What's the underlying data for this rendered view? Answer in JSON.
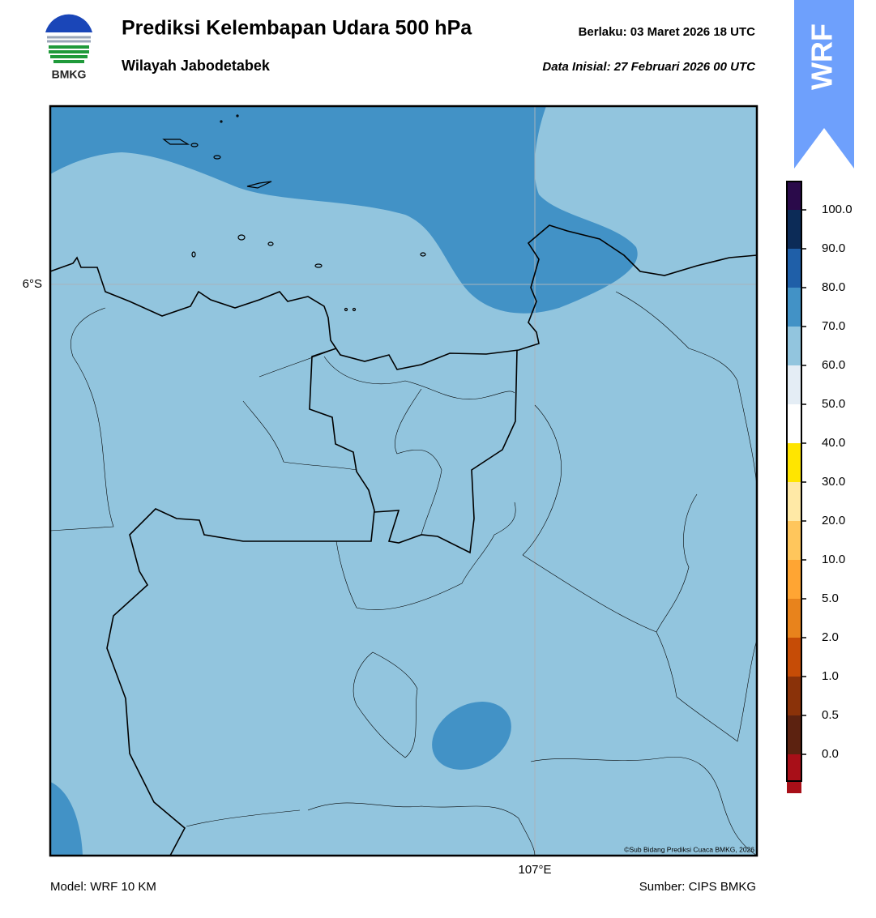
{
  "header": {
    "title": "Prediksi Kelembapan Udara 500 hPa",
    "subtitle": "Wilayah Jabodetabek",
    "valid": "Berlaku:  03 Maret 2026 18 UTC",
    "initial": "Data Inisial:  27 Februari 2026 00 UTC"
  },
  "logo": {
    "text": "BMKG"
  },
  "badge": {
    "text": "WRF"
  },
  "map": {
    "lat_label": "6°S",
    "lon_label": "107°E",
    "credit": "©Sub Bidang Prediksi Cuaca BMKG, 2026"
  },
  "colorbar": {
    "labels": [
      "100.0",
      "90.0",
      "80.0",
      "70.0",
      "60.0",
      "50.0",
      "40.0",
      "30.0",
      "20.0",
      "10.0",
      "5.0",
      "2.0",
      "1.0",
      "0.5",
      "0.0"
    ],
    "colors": [
      "#2a0a4a",
      "#0c2b57",
      "#1f5fa8",
      "#4292c6",
      "#92c5de",
      "#e4edf5",
      "#ffffff",
      "#ffe500",
      "#ffe9a6",
      "#ffc65c",
      "#ffa533",
      "#e8831c",
      "#c64c06",
      "#8a3209",
      "#5c2210",
      "#a80f18",
      "#e8372f"
    ]
  },
  "footer": {
    "model": "Model: WRF 10 KM",
    "source": "Sumber: CIPS BMKG"
  }
}
